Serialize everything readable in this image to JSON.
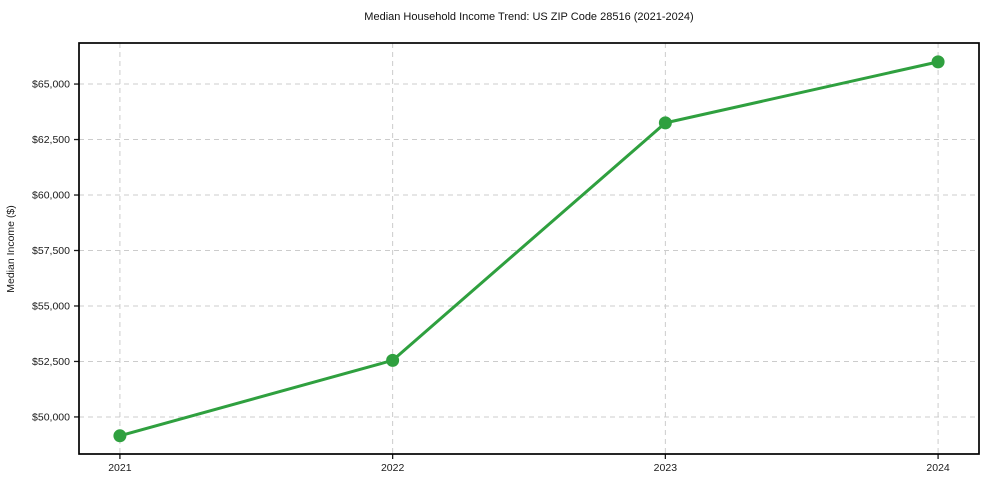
{
  "chart_data": {
    "type": "line",
    "title": "Median Household Income Trend: US ZIP Code 28516 (2021-2024)",
    "xlabel": "",
    "ylabel": "Median Income ($)",
    "x": [
      2021,
      2022,
      2023,
      2024
    ],
    "x_tick_labels": [
      "2021",
      "2022",
      "2023",
      "2024"
    ],
    "series": [
      {
        "name": "Median Household Income",
        "values": [
          49150,
          52550,
          63250,
          66000
        ]
      }
    ],
    "y_ticks": [
      {
        "value": 50000,
        "label": "$50,000"
      },
      {
        "value": 52500,
        "label": "$52,500"
      },
      {
        "value": 55000,
        "label": "$55,000"
      },
      {
        "value": 57500,
        "label": "$57,500"
      },
      {
        "value": 60000,
        "label": "$60,000"
      },
      {
        "value": 62500,
        "label": "$62,500"
      },
      {
        "value": 65000,
        "label": "$65,000"
      }
    ],
    "ylim": [
      48330,
      66850
    ],
    "grid": true,
    "grid_style": "dashed",
    "legend_position": "none",
    "colors": {
      "line": "#2fa03f",
      "marker": "#2fa03f",
      "grid": "#cccccc",
      "spine": "#000000",
      "text": "#1a1a1a"
    }
  }
}
